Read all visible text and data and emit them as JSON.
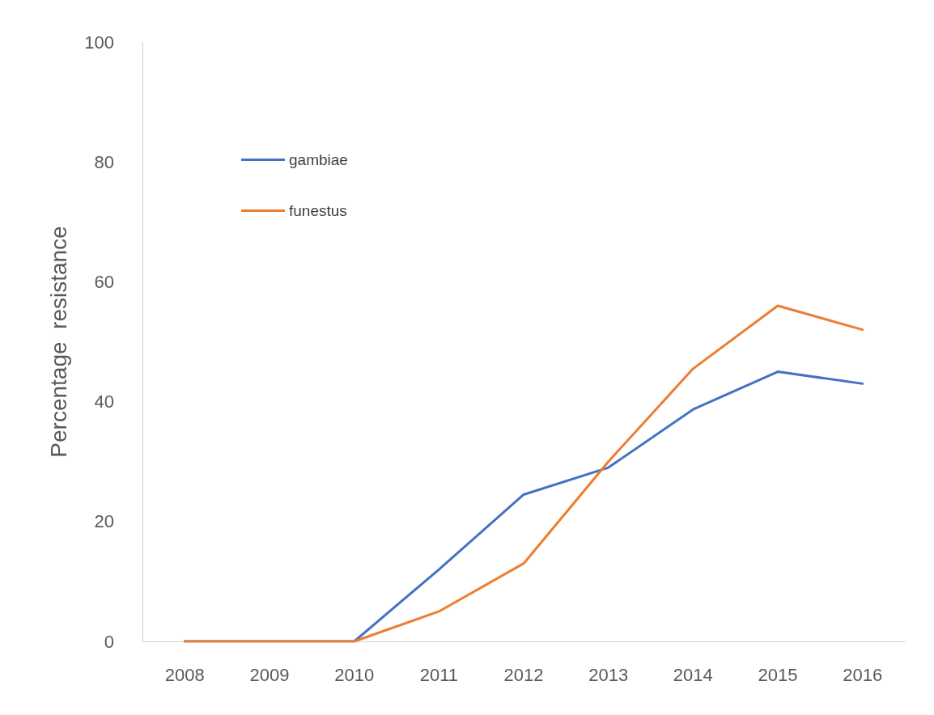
{
  "chart_data": {
    "type": "line",
    "ylabel": "Percentage  resistance",
    "categories": [
      "2008",
      "2009",
      "2010",
      "2011",
      "2012",
      "2013",
      "2014",
      "2015",
      "2016"
    ],
    "series": [
      {
        "name": "gambiae",
        "color": "#4472c4",
        "values": [
          0,
          0,
          0,
          12,
          24.5,
          29,
          38.7,
          45,
          43
        ]
      },
      {
        "name": "funestus",
        "color": "#ed7d31",
        "values": [
          0,
          0,
          0,
          5,
          13,
          30,
          45.5,
          56,
          52
        ]
      }
    ],
    "ylim": [
      0,
      100
    ],
    "yticks": [
      0,
      20,
      40,
      60,
      80,
      100
    ],
    "grid": false,
    "legend": "top left",
    "marker": "none",
    "line_style": "solid"
  }
}
